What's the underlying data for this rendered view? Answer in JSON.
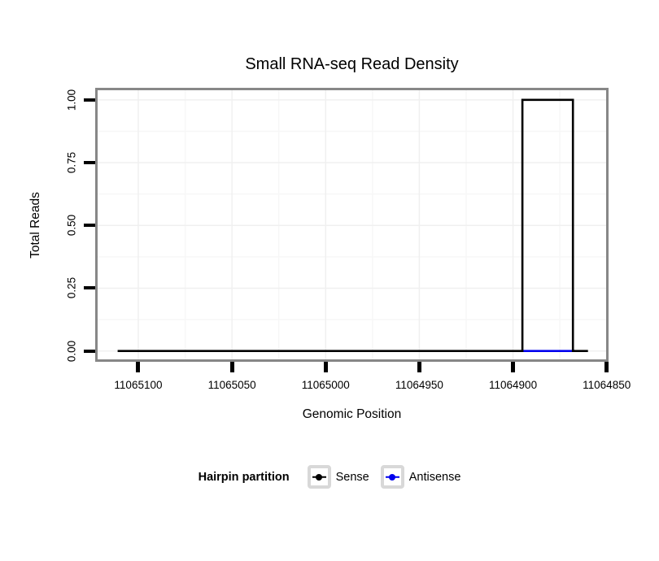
{
  "chart_data": {
    "type": "line",
    "title": "Small RNA-seq Read Density",
    "xlabel": "Genomic Position",
    "ylabel": "Total Reads",
    "x_reversed": true,
    "xlim": [
      11065123,
      11064849
    ],
    "ylim": [
      -0.043,
      1.048
    ],
    "grid": "major-and-minor-faint",
    "x_ticks": [
      11065100,
      11065050,
      11065000,
      11064950,
      11064900,
      11064850
    ],
    "x_tick_labels": [
      "11065100",
      "11065050",
      "11065000",
      "11064950",
      "11064900",
      "11064850"
    ],
    "y_ticks": [
      0.0,
      0.25,
      0.5,
      0.75,
      1.0
    ],
    "y_tick_labels": [
      "0.00",
      "0.25",
      "0.50",
      "0.75",
      "1.00"
    ],
    "series": [
      {
        "name": "Antisense",
        "color": "#0000ee",
        "points": [
          [
            11064895,
            0
          ],
          [
            11064867,
            0
          ]
        ]
      },
      {
        "name": "Sense",
        "color": "#000000",
        "points": [
          [
            11065111,
            0
          ],
          [
            11064895,
            0
          ],
          [
            11064895,
            1
          ],
          [
            11064868,
            1
          ],
          [
            11064868,
            0
          ],
          [
            11064860,
            0
          ]
        ]
      }
    ]
  },
  "legend": {
    "title": "Hairpin partition",
    "position": "bottom-center",
    "entries": [
      {
        "label": "Sense",
        "color": "#000000"
      },
      {
        "label": "Antisense",
        "color": "#0000ee"
      }
    ]
  },
  "colors": {
    "panel_border": "#878787",
    "legend_key_border": "#d8d8d8",
    "grid_major": "#f0f0f0",
    "grid_minor": "#f7f7f7",
    "background": "#ffffff"
  }
}
